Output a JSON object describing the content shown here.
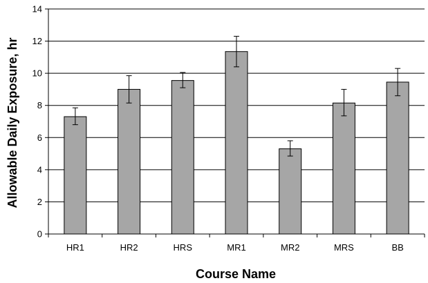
{
  "chart_data": {
    "type": "bar",
    "title": "",
    "xlabel": "Course Name",
    "ylabel": "Allowable Daily Exposure, hr",
    "ylim": [
      0,
      14
    ],
    "yticks": [
      0,
      2,
      4,
      6,
      8,
      10,
      12,
      14
    ],
    "grid": "horizontal",
    "legend": "none",
    "bar_color": "#a6a6a6",
    "categories": [
      "HR1",
      "HR2",
      "HRS",
      "MR1",
      "MR2",
      "MRS",
      "BB"
    ],
    "values": [
      7.3,
      9.0,
      9.55,
      11.35,
      5.3,
      8.15,
      9.45
    ],
    "error_low": [
      6.8,
      8.15,
      9.1,
      10.4,
      4.85,
      7.35,
      8.6
    ],
    "error_high": [
      7.85,
      9.85,
      10.05,
      12.3,
      5.8,
      9.0,
      10.3
    ]
  }
}
